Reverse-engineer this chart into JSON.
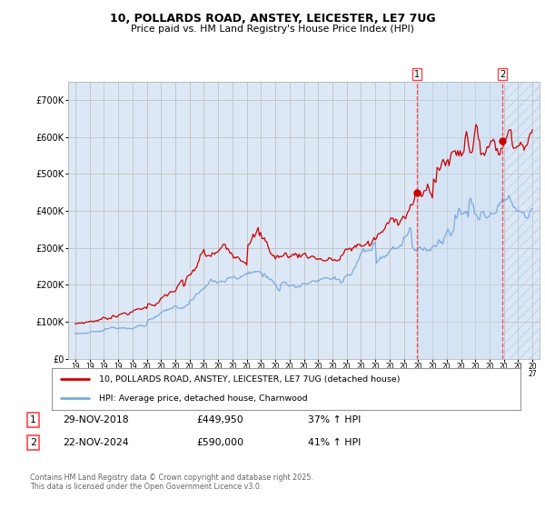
{
  "title": "10, POLLARDS ROAD, ANSTEY, LEICESTER, LE7 7UG",
  "subtitle": "Price paid vs. HM Land Registry's House Price Index (HPI)",
  "background_color": "#ffffff",
  "plot_bg_color": "#dce8f5",
  "grid_color": "#bbbbbb",
  "red_color": "#cc0000",
  "blue_color": "#7aaadd",
  "dashed_color": "#ff4444",
  "shade_color": "#dce8f5",
  "hatch_color": "#c8d8ee",
  "marker1_date_x": 2018.91,
  "marker2_date_x": 2024.9,
  "legend_line1": "10, POLLARDS ROAD, ANSTEY, LEICESTER, LE7 7UG (detached house)",
  "legend_line2": "HPI: Average price, detached house, Charnwood",
  "footer": "Contains HM Land Registry data © Crown copyright and database right 2025.\nThis data is licensed under the Open Government Licence v3.0.",
  "xmin": 1994.5,
  "xmax": 2027.5,
  "ymin": 0,
  "ymax": 750000
}
